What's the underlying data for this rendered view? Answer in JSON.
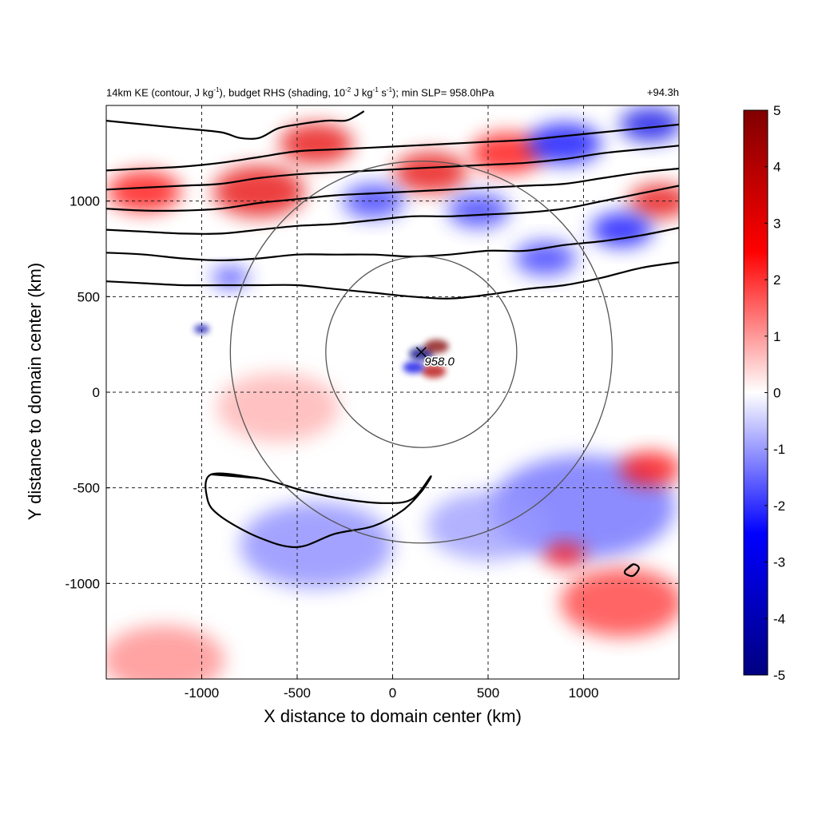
{
  "chart_data": {
    "type": "heatmap",
    "title_parts": {
      "a": "14km KE (contour, J kg",
      "a_sup": "-1",
      "b": "), budget RHS (shading, 10",
      "b_sup": "-2",
      "c": " J kg",
      "c_sup": "-1",
      "d": " s",
      "d_sup": "-1",
      "e": "); min SLP= 958.0hPa"
    },
    "time_label": "+94.3h",
    "xlabel": "X distance to domain center (km)",
    "ylabel": "Y distance to domain center (km)",
    "xlim": [
      -1500,
      1500
    ],
    "ylim": [
      -1500,
      1500
    ],
    "xticks": [
      -1000,
      -500,
      0,
      500,
      1000
    ],
    "yticks": [
      -1000,
      -500,
      0,
      500,
      1000
    ],
    "grid": true,
    "colorbar": {
      "range": [
        -5,
        5
      ],
      "ticks": [
        5,
        4,
        3,
        2,
        1,
        0,
        -1,
        -2,
        -3,
        -4,
        -5
      ],
      "colors": [
        "#000080",
        "#0000ff",
        "#ffffff",
        "#ff0000",
        "#800000"
      ]
    },
    "storm_center": {
      "x": 150,
      "y": 210,
      "label": "958.0"
    },
    "rings_km": [
      500,
      1000
    ],
    "features": [
      {
        "x": 150,
        "y": 200,
        "value": -5,
        "radius_km": 40
      },
      {
        "x": 230,
        "y": 240,
        "value": 5,
        "radius_km": 40
      },
      {
        "x": 215,
        "y": 110,
        "value": 4,
        "radius_km": 40
      },
      {
        "x": 110,
        "y": 130,
        "value": -3,
        "radius_km": 35
      },
      {
        "x": -1000,
        "y": 330,
        "value": -4,
        "radius_km": 25
      },
      {
        "x": -400,
        "y": 1300,
        "value": 3,
        "radius_km": 120
      },
      {
        "x": -700,
        "y": 1050,
        "value": 3,
        "radius_km": 150
      },
      {
        "x": -1300,
        "y": 1050,
        "value": 2.5,
        "radius_km": 120
      },
      {
        "x": 200,
        "y": 1150,
        "value": 3,
        "radius_km": 120
      },
      {
        "x": 600,
        "y": 1250,
        "value": 2.5,
        "radius_km": 120
      },
      {
        "x": 1400,
        "y": 1000,
        "value": 3,
        "radius_km": 100
      },
      {
        "x": 900,
        "y": 1300,
        "value": -2.5,
        "radius_km": 120
      },
      {
        "x": 1350,
        "y": 1400,
        "value": -3,
        "radius_km": 100
      },
      {
        "x": 800,
        "y": 700,
        "value": -2,
        "radius_km": 100
      },
      {
        "x": 1200,
        "y": 850,
        "value": -2.5,
        "radius_km": 100
      },
      {
        "x": 450,
        "y": 950,
        "value": -2,
        "radius_km": 100
      },
      {
        "x": -100,
        "y": 1000,
        "value": -2,
        "radius_km": 100
      },
      {
        "x": -850,
        "y": 600,
        "value": -2,
        "radius_km": 60
      },
      {
        "x": -400,
        "y": -800,
        "value": -1.2,
        "radius_km": 250
      },
      {
        "x": 1000,
        "y": -600,
        "value": -1.5,
        "radius_km": 300
      },
      {
        "x": 1200,
        "y": -1100,
        "value": 2,
        "radius_km": 200
      },
      {
        "x": -1200,
        "y": -1400,
        "value": 1.2,
        "radius_km": 200
      },
      {
        "x": -600,
        "y": -80,
        "value": 0.8,
        "radius_km": 200
      },
      {
        "x": 1350,
        "y": -400,
        "value": 2.5,
        "radius_km": 100
      },
      {
        "x": 900,
        "y": -850,
        "value": 2.5,
        "radius_km": 70
      },
      {
        "x": 500,
        "y": -700,
        "value": -1,
        "radius_km": 200
      }
    ],
    "ke_contours": [
      {
        "name": "c1",
        "points": [
          [
            -1500,
            580
          ],
          [
            -1300,
            570
          ],
          [
            -1100,
            560
          ],
          [
            -900,
            560
          ],
          [
            -700,
            560
          ],
          [
            -500,
            560
          ],
          [
            -300,
            540
          ],
          [
            -100,
            520
          ],
          [
            100,
            500
          ],
          [
            300,
            490
          ],
          [
            500,
            510
          ],
          [
            700,
            540
          ],
          [
            900,
            560
          ],
          [
            1100,
            600
          ],
          [
            1300,
            650
          ],
          [
            1500,
            680
          ]
        ]
      },
      {
        "name": "c2",
        "points": [
          [
            -1500,
            730
          ],
          [
            -1300,
            720
          ],
          [
            -1100,
            700
          ],
          [
            -900,
            690
          ],
          [
            -700,
            700
          ],
          [
            -500,
            720
          ],
          [
            -300,
            720
          ],
          [
            -100,
            720
          ],
          [
            100,
            710
          ],
          [
            300,
            720
          ],
          [
            500,
            740
          ],
          [
            700,
            740
          ],
          [
            900,
            770
          ],
          [
            1100,
            790
          ],
          [
            1300,
            820
          ],
          [
            1500,
            860
          ]
        ]
      },
      {
        "name": "c3",
        "points": [
          [
            -1500,
            850
          ],
          [
            -1300,
            840
          ],
          [
            -1100,
            830
          ],
          [
            -900,
            830
          ],
          [
            -700,
            850
          ],
          [
            -500,
            870
          ],
          [
            -300,
            880
          ],
          [
            -100,
            900
          ],
          [
            100,
            920
          ],
          [
            300,
            920
          ],
          [
            500,
            930
          ],
          [
            700,
            940
          ],
          [
            900,
            960
          ],
          [
            1100,
            1000
          ],
          [
            1300,
            1040
          ],
          [
            1500,
            1080
          ]
        ]
      },
      {
        "name": "c4",
        "points": [
          [
            -1500,
            960
          ],
          [
            -1300,
            950
          ],
          [
            -1100,
            950
          ],
          [
            -900,
            960
          ],
          [
            -700,
            990
          ],
          [
            -500,
            1010
          ],
          [
            -300,
            1030
          ],
          [
            -100,
            1040
          ],
          [
            100,
            1050
          ],
          [
            300,
            1060
          ],
          [
            500,
            1070
          ],
          [
            700,
            1080
          ],
          [
            900,
            1090
          ],
          [
            1100,
            1120
          ],
          [
            1300,
            1150
          ],
          [
            1500,
            1170
          ]
        ]
      },
      {
        "name": "c5",
        "points": [
          [
            -1500,
            1060
          ],
          [
            -1300,
            1070
          ],
          [
            -1100,
            1080
          ],
          [
            -900,
            1090
          ],
          [
            -700,
            1120
          ],
          [
            -500,
            1140
          ],
          [
            -300,
            1150
          ],
          [
            -100,
            1160
          ],
          [
            100,
            1170
          ],
          [
            300,
            1180
          ],
          [
            500,
            1190
          ],
          [
            700,
            1200
          ],
          [
            900,
            1220
          ],
          [
            1100,
            1250
          ],
          [
            1300,
            1270
          ],
          [
            1500,
            1290
          ]
        ]
      },
      {
        "name": "c6",
        "points": [
          [
            -1500,
            1160
          ],
          [
            -1300,
            1170
          ],
          [
            -1100,
            1180
          ],
          [
            -900,
            1200
          ],
          [
            -700,
            1230
          ],
          [
            -500,
            1260
          ],
          [
            -300,
            1270
          ],
          [
            -100,
            1280
          ],
          [
            100,
            1290
          ],
          [
            300,
            1300
          ],
          [
            500,
            1310
          ],
          [
            700,
            1320
          ],
          [
            900,
            1340
          ],
          [
            1100,
            1360
          ],
          [
            1300,
            1380
          ],
          [
            1500,
            1400
          ]
        ]
      },
      {
        "name": "c7",
        "points": [
          [
            -1500,
            1420
          ],
          [
            -1300,
            1400
          ],
          [
            -1100,
            1380
          ],
          [
            -900,
            1360
          ],
          [
            -800,
            1330
          ],
          [
            -700,
            1330
          ],
          [
            -600,
            1380
          ],
          [
            -500,
            1400
          ],
          [
            -350,
            1420
          ],
          [
            -250,
            1420
          ],
          [
            -200,
            1440
          ],
          [
            -150,
            1470
          ]
        ]
      }
    ],
    "ke_closed_contours": [
      {
        "name": "south-loop",
        "points": [
          [
            -950,
            -430
          ],
          [
            -700,
            -450
          ],
          [
            -450,
            -520
          ],
          [
            -250,
            -560
          ],
          [
            -50,
            -580
          ],
          [
            100,
            -560
          ],
          [
            200,
            -440
          ],
          [
            150,
            -520
          ],
          [
            50,
            -620
          ],
          [
            -100,
            -700
          ],
          [
            -300,
            -740
          ],
          [
            -500,
            -810
          ],
          [
            -700,
            -760
          ],
          [
            -900,
            -650
          ],
          [
            -970,
            -560
          ]
        ]
      },
      {
        "name": "east-loop",
        "points": [
          [
            1220,
            -930
          ],
          [
            1260,
            -900
          ],
          [
            1290,
            -920
          ],
          [
            1260,
            -960
          ],
          [
            1220,
            -950
          ]
        ]
      }
    ]
  }
}
